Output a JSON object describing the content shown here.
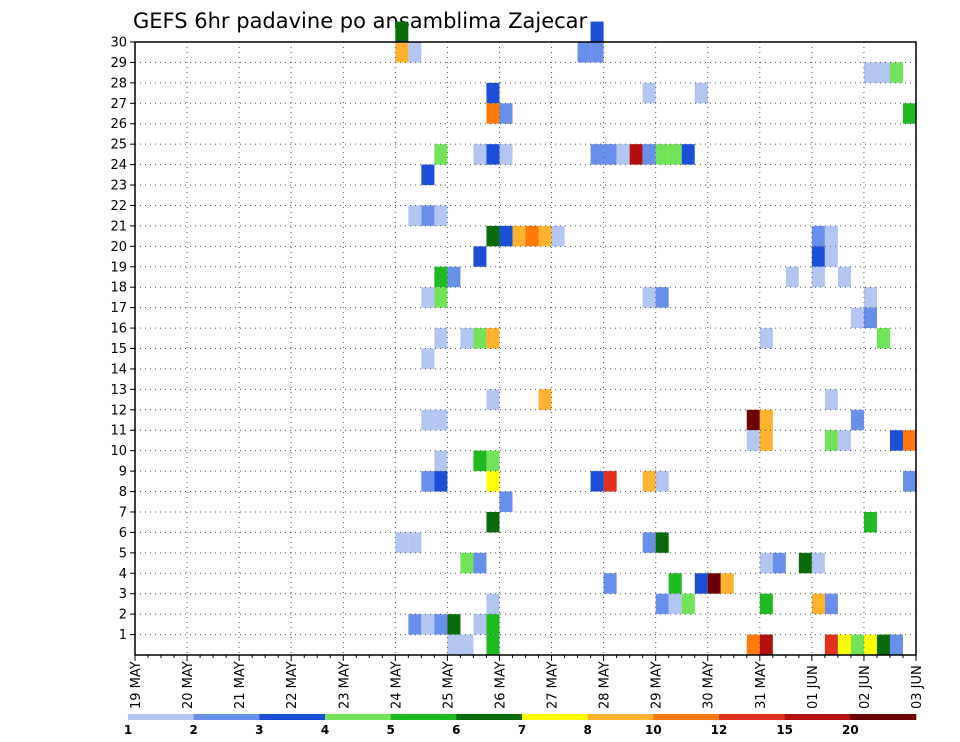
{
  "chart_data": {
    "type": "heatmap",
    "title": "GEFS 6hr padavine po ansamblima Zajecar",
    "y_ticks": [
      "1",
      "2",
      "3",
      "4",
      "5",
      "6",
      "7",
      "8",
      "9",
      "10",
      "11",
      "12",
      "13",
      "14",
      "15",
      "16",
      "17",
      "18",
      "19",
      "20",
      "21",
      "22",
      "23",
      "24",
      "25",
      "26",
      "27",
      "28",
      "29",
      "30"
    ],
    "ylim": [
      0,
      30
    ],
    "x_ticks": [
      "19 MAY",
      "20 MAY",
      "21 MAY",
      "22 MAY",
      "23 MAY",
      "24 MAY",
      "25 MAY",
      "26 MAY",
      "27 MAY",
      "28 MAY",
      "29 MAY",
      "30 MAY",
      "31 MAY",
      "01 JUN",
      "02 JUN",
      "03 JUN"
    ],
    "x_range_steps": 60,
    "grid": true,
    "legend": {
      "position": "bottom",
      "colors": [
        "#b3c6f2",
        "#6890ea",
        "#1c4fd8",
        "#72e35a",
        "#1fba1f",
        "#0b6b0b",
        "#ffff00",
        "#ffb32e",
        "#ff7a0a",
        "#e0301e",
        "#b30f0f",
        "#6b0000"
      ],
      "labels": [
        "1",
        "2",
        "3",
        "4",
        "5",
        "6",
        "7",
        "8",
        "10",
        "12",
        "15",
        "20"
      ]
    },
    "cells": [
      {
        "t": 20,
        "m": 30,
        "c": 5
      },
      {
        "t": 35,
        "m": 30,
        "c": 2
      },
      {
        "t": 20,
        "m": 29,
        "c": 7
      },
      {
        "t": 21,
        "m": 29,
        "c": 0
      },
      {
        "t": 34,
        "m": 29,
        "c": 1
      },
      {
        "t": 35,
        "m": 29,
        "c": 1
      },
      {
        "t": 56,
        "m": 28,
        "c": 0
      },
      {
        "t": 57,
        "m": 28,
        "c": 0
      },
      {
        "t": 58,
        "m": 28,
        "c": 3
      },
      {
        "t": 27,
        "m": 27,
        "c": 2
      },
      {
        "t": 39,
        "m": 27,
        "c": 0
      },
      {
        "t": 43,
        "m": 27,
        "c": 0
      },
      {
        "t": 27,
        "m": 26,
        "c": 8
      },
      {
        "t": 28,
        "m": 26,
        "c": 1
      },
      {
        "t": 59,
        "m": 26,
        "c": 4
      },
      {
        "t": 60,
        "m": 26,
        "c": 1
      },
      {
        "t": 23,
        "m": 24,
        "c": 3
      },
      {
        "t": 26,
        "m": 24,
        "c": 0
      },
      {
        "t": 27,
        "m": 24,
        "c": 2
      },
      {
        "t": 28,
        "m": 24,
        "c": 0
      },
      {
        "t": 35,
        "m": 24,
        "c": 1
      },
      {
        "t": 36,
        "m": 24,
        "c": 1
      },
      {
        "t": 37,
        "m": 24,
        "c": 0
      },
      {
        "t": 38,
        "m": 24,
        "c": 10
      },
      {
        "t": 39,
        "m": 24,
        "c": 1
      },
      {
        "t": 40,
        "m": 24,
        "c": 3
      },
      {
        "t": 41,
        "m": 24,
        "c": 3
      },
      {
        "t": 42,
        "m": 24,
        "c": 2
      },
      {
        "t": 22,
        "m": 23,
        "c": 2
      },
      {
        "t": 21,
        "m": 21,
        "c": 0
      },
      {
        "t": 23,
        "m": 21,
        "c": 0
      },
      {
        "t": 22,
        "m": 21,
        "c": 1
      },
      {
        "t": 27,
        "m": 20,
        "c": 5
      },
      {
        "t": 28,
        "m": 20,
        "c": 2
      },
      {
        "t": 29,
        "m": 20,
        "c": 7
      },
      {
        "t": 30,
        "m": 20,
        "c": 8
      },
      {
        "t": 31,
        "m": 20,
        "c": 7
      },
      {
        "t": 32,
        "m": 20,
        "c": 0
      },
      {
        "t": 52,
        "m": 20,
        "c": 1
      },
      {
        "t": 53,
        "m": 20,
        "c": 0
      },
      {
        "t": 26,
        "m": 19,
        "c": 2
      },
      {
        "t": 52,
        "m": 19,
        "c": 2
      },
      {
        "t": 53,
        "m": 19,
        "c": 0
      },
      {
        "t": 60,
        "m": 19,
        "c": 0
      },
      {
        "t": 23,
        "m": 18,
        "c": 4
      },
      {
        "t": 24,
        "m": 18,
        "c": 1
      },
      {
        "t": 50,
        "m": 18,
        "c": 0
      },
      {
        "t": 52,
        "m": 18,
        "c": 0
      },
      {
        "t": 54,
        "m": 18,
        "c": 0
      },
      {
        "t": 22,
        "m": 17,
        "c": 0
      },
      {
        "t": 23,
        "m": 17,
        "c": 3
      },
      {
        "t": 39,
        "m": 17,
        "c": 0
      },
      {
        "t": 40,
        "m": 17,
        "c": 1
      },
      {
        "t": 56,
        "m": 17,
        "c": 0
      },
      {
        "t": 55,
        "m": 16,
        "c": 0
      },
      {
        "t": 56,
        "m": 16,
        "c": 1
      },
      {
        "t": 23,
        "m": 15,
        "c": 0
      },
      {
        "t": 25,
        "m": 15,
        "c": 0
      },
      {
        "t": 26,
        "m": 15,
        "c": 3
      },
      {
        "t": 27,
        "m": 15,
        "c": 7
      },
      {
        "t": 48,
        "m": 15,
        "c": 0
      },
      {
        "t": 57,
        "m": 15,
        "c": 3
      },
      {
        "t": 60,
        "m": 15,
        "c": 0
      },
      {
        "t": 22,
        "m": 14,
        "c": 0
      },
      {
        "t": 27,
        "m": 12,
        "c": 0
      },
      {
        "t": 31,
        "m": 12,
        "c": 7
      },
      {
        "t": 53,
        "m": 12,
        "c": 0
      },
      {
        "t": 22,
        "m": 11,
        "c": 0
      },
      {
        "t": 23,
        "m": 11,
        "c": 0
      },
      {
        "t": 47,
        "m": 11,
        "c": 11
      },
      {
        "t": 48,
        "m": 11,
        "c": 7
      },
      {
        "t": 55,
        "m": 11,
        "c": 1
      },
      {
        "t": 47,
        "m": 10,
        "c": 0
      },
      {
        "t": 48,
        "m": 10,
        "c": 7
      },
      {
        "t": 53,
        "m": 10,
        "c": 3
      },
      {
        "t": 54,
        "m": 10,
        "c": 0
      },
      {
        "t": 58,
        "m": 10,
        "c": 2
      },
      {
        "t": 59,
        "m": 10,
        "c": 8
      },
      {
        "t": 23,
        "m": 9,
        "c": 0
      },
      {
        "t": 26,
        "m": 9,
        "c": 4
      },
      {
        "t": 27,
        "m": 9,
        "c": 3
      },
      {
        "t": 22,
        "m": 8,
        "c": 1
      },
      {
        "t": 23,
        "m": 8,
        "c": 2
      },
      {
        "t": 27,
        "m": 8,
        "c": 6
      },
      {
        "t": 35,
        "m": 8,
        "c": 2
      },
      {
        "t": 36,
        "m": 8,
        "c": 9
      },
      {
        "t": 39,
        "m": 8,
        "c": 7
      },
      {
        "t": 40,
        "m": 8,
        "c": 0
      },
      {
        "t": 59,
        "m": 8,
        "c": 1
      },
      {
        "t": 28,
        "m": 7,
        "c": 1
      },
      {
        "t": 27,
        "m": 6,
        "c": 5
      },
      {
        "t": 56,
        "m": 6,
        "c": 4
      },
      {
        "t": 20,
        "m": 5,
        "c": 0
      },
      {
        "t": 21,
        "m": 5,
        "c": 0
      },
      {
        "t": 39,
        "m": 5,
        "c": 1
      },
      {
        "t": 40,
        "m": 5,
        "c": 5
      },
      {
        "t": 60,
        "m": 5,
        "c": 2
      },
      {
        "t": 25,
        "m": 4,
        "c": 3
      },
      {
        "t": 26,
        "m": 4,
        "c": 1
      },
      {
        "t": 48,
        "m": 4,
        "c": 0
      },
      {
        "t": 49,
        "m": 4,
        "c": 1
      },
      {
        "t": 51,
        "m": 4,
        "c": 5
      },
      {
        "t": 52,
        "m": 4,
        "c": 0
      },
      {
        "t": 36,
        "m": 3,
        "c": 1
      },
      {
        "t": 41,
        "m": 3,
        "c": 4
      },
      {
        "t": 43,
        "m": 3,
        "c": 2
      },
      {
        "t": 44,
        "m": 3,
        "c": 11
      },
      {
        "t": 45,
        "m": 3,
        "c": 7
      },
      {
        "t": 27,
        "m": 2,
        "c": 0
      },
      {
        "t": 40,
        "m": 2,
        "c": 1
      },
      {
        "t": 41,
        "m": 2,
        "c": 0
      },
      {
        "t": 42,
        "m": 2,
        "c": 3
      },
      {
        "t": 48,
        "m": 2,
        "c": 4
      },
      {
        "t": 52,
        "m": 2,
        "c": 7
      },
      {
        "t": 53,
        "m": 2,
        "c": 1
      },
      {
        "t": 21,
        "m": 1,
        "c": 1
      },
      {
        "t": 22,
        "m": 1,
        "c": 0
      },
      {
        "t": 23,
        "m": 1,
        "c": 1
      },
      {
        "t": 24,
        "m": 1,
        "c": 5
      },
      {
        "t": 26,
        "m": 1,
        "c": 0
      },
      {
        "t": 27,
        "m": 1,
        "c": 4
      },
      {
        "t": 24,
        "m": 0,
        "c": 0
      },
      {
        "t": 25,
        "m": 0,
        "c": 0
      },
      {
        "t": 27,
        "m": 0,
        "c": 4
      },
      {
        "t": 47,
        "m": 0,
        "c": 8
      },
      {
        "t": 48,
        "m": 0,
        "c": 10
      },
      {
        "t": 53,
        "m": 0,
        "c": 9
      },
      {
        "t": 54,
        "m": 0,
        "c": 6
      },
      {
        "t": 55,
        "m": 0,
        "c": 3
      },
      {
        "t": 56,
        "m": 0,
        "c": 6
      },
      {
        "t": 57,
        "m": 0,
        "c": 5
      },
      {
        "t": 58,
        "m": 0,
        "c": 1
      }
    ]
  }
}
